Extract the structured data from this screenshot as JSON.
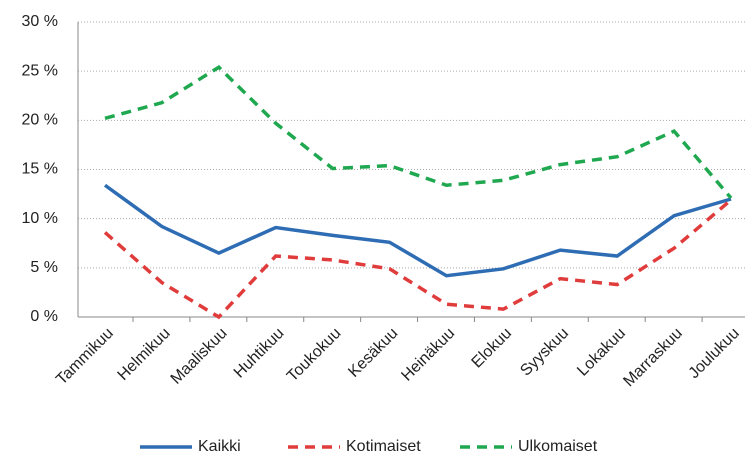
{
  "chart_data": {
    "type": "line",
    "categories": [
      "Tammikuu",
      "Helmikuu",
      "Maaliskuu",
      "Huhtikuu",
      "Toukokuu",
      "Kesäkuu",
      "Heinäkuu",
      "Elokuu",
      "Syyskuu",
      "Lokakuu",
      "Marraskuu",
      "Joulukuu"
    ],
    "series": [
      {
        "name": "Kaikki",
        "color": "#2e6db4",
        "dashed": false,
        "values": [
          13.4,
          9.2,
          6.5,
          9.1,
          8.3,
          7.6,
          4.2,
          4.9,
          6.8,
          6.2,
          10.3,
          12.0
        ]
      },
      {
        "name": "Kotimaiset",
        "color": "#e03c3c",
        "dashed": true,
        "values": [
          8.6,
          3.5,
          0,
          6.2,
          5.8,
          4.9,
          1.3,
          0.8,
          3.9,
          3.3,
          7.0,
          11.9
        ]
      },
      {
        "name": "Ulkomaiset",
        "color": "#1fa84f",
        "dashed": true,
        "values": [
          20.2,
          21.8,
          25.4,
          19.7,
          15.1,
          15.4,
          13.4,
          13.9,
          15.5,
          16.3,
          18.9,
          12.1
        ]
      }
    ],
    "ylim": [
      0,
      30
    ],
    "yticks": [
      {
        "value": 0,
        "label": "0 %"
      },
      {
        "value": 5,
        "label": "5 %"
      },
      {
        "value": 10,
        "label": "10 %"
      },
      {
        "value": 15,
        "label": "15 %"
      },
      {
        "value": 20,
        "label": "20 %"
      },
      {
        "value": 25,
        "label": "25 %"
      },
      {
        "value": 30,
        "label": "30 %"
      }
    ],
    "grid": true,
    "legend": "bottom"
  }
}
